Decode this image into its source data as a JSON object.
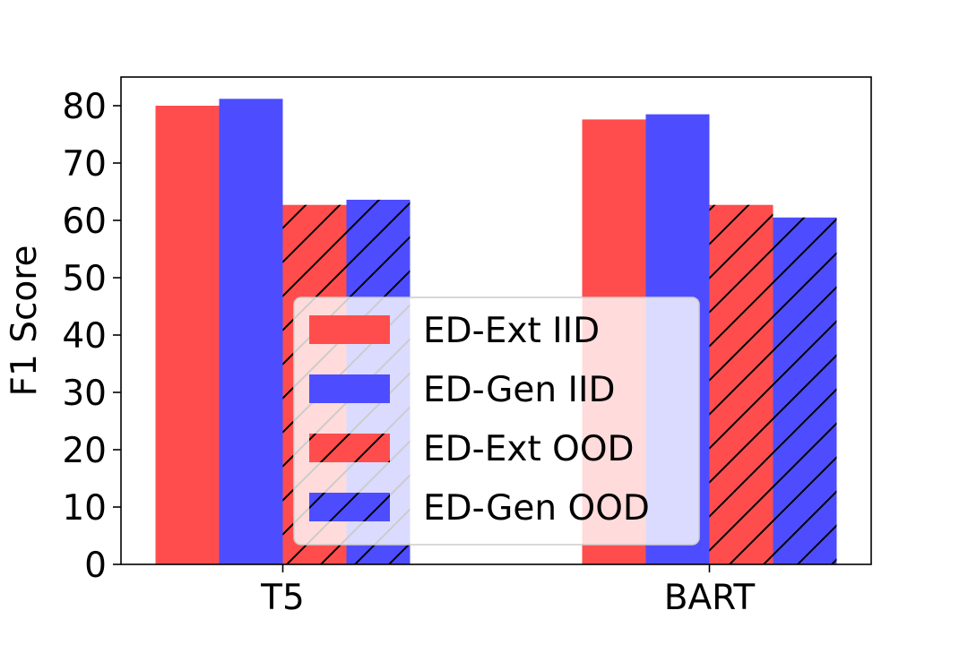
{
  "chart_data": {
    "type": "bar",
    "title": "",
    "xlabel": "",
    "ylabel": "F1 Score",
    "categories": [
      "T5",
      "BART"
    ],
    "ylim": [
      0,
      85
    ],
    "yticks": [
      0,
      10,
      20,
      30,
      40,
      50,
      60,
      70,
      80
    ],
    "grid": false,
    "legend_placement": "lower-center",
    "series": [
      {
        "name": "ED-Ext IID",
        "values": [
          80.0,
          77.6
        ],
        "color": "#ff4d4d",
        "hatch": false
      },
      {
        "name": "ED-Gen IID",
        "values": [
          81.2,
          78.5
        ],
        "color": "#4d4dff",
        "hatch": false
      },
      {
        "name": "ED-Ext OOD",
        "values": [
          62.7,
          62.7
        ],
        "color": "#ff4d4d",
        "hatch": true
      },
      {
        "name": "ED-Gen OOD",
        "values": [
          63.6,
          60.5
        ],
        "color": "#4d4dff",
        "hatch": true
      }
    ]
  }
}
